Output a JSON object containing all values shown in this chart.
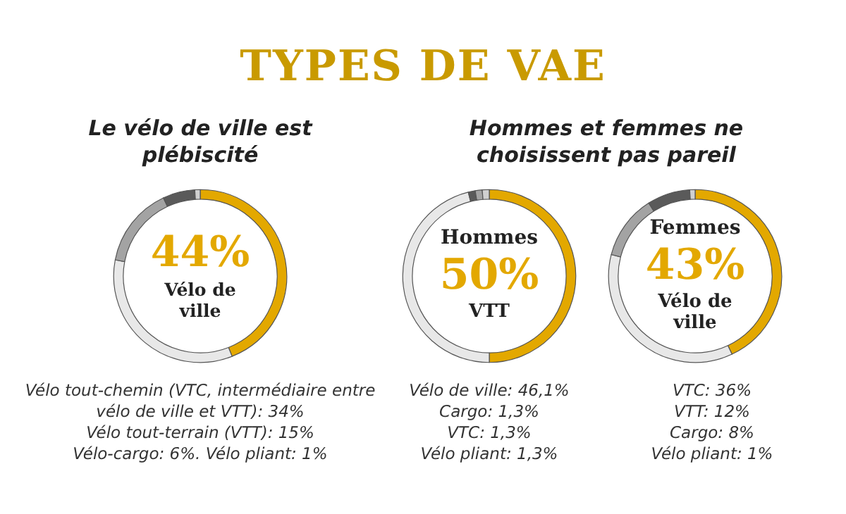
{
  "chart_data": [
    {
      "type": "donut",
      "title": "TYPES DE VAE",
      "subtitle": "Le vélo de ville est plébiscité",
      "annotations": [
        "44%",
        "Vélo de ville",
        "Vélo tout-chemin (VTC, intermédiaire entre vélo de ville et VTT): 34%",
        "Vélo tout-terrain (VTT): 15%",
        "Vélo-cargo: 6%. Vélo pliant: 1%"
      ],
      "categories": [
        null,
        null,
        null,
        null,
        null
      ],
      "values": [
        44,
        34,
        15,
        6,
        1
      ],
      "colors": [
        "#e3a800",
        "#e8e8e8",
        "#a3a3a3",
        "#5a5a5a",
        "#d0d0d0"
      ]
    },
    {
      "type": "donut",
      "subtitle": "Hommes et femmes ne choisissent pas pareil",
      "title": "Hommes",
      "annotations": [
        "50%",
        "VTT",
        "Vélo de ville: 46,1%",
        "Cargo: 1,3%",
        "VTC: 1,3%",
        "Vélo pliant: 1,3%"
      ],
      "categories": [
        null,
        null,
        null,
        null,
        null
      ],
      "values": [
        50,
        46.1,
        1.3,
        1.3,
        1.3
      ],
      "colors": [
        "#e3a800",
        "#e8e8e8",
        "#5a5a5a",
        "#a3a3a3",
        "#d0d0d0"
      ]
    },
    {
      "type": "donut",
      "title": "Femmes",
      "annotations": [
        "43%",
        "Vélo de ville",
        "VTC: 36%",
        "VTT: 12%",
        "Cargo: 8%",
        "Vélo pliant: 1%"
      ],
      "categories": [
        null,
        null,
        null,
        null,
        null
      ],
      "values": [
        43,
        36,
        12,
        8,
        1
      ],
      "colors": [
        "#e3a800",
        "#e8e8e8",
        "#a3a3a3",
        "#5a5a5a",
        "#d0d0d0"
      ]
    }
  ]
}
